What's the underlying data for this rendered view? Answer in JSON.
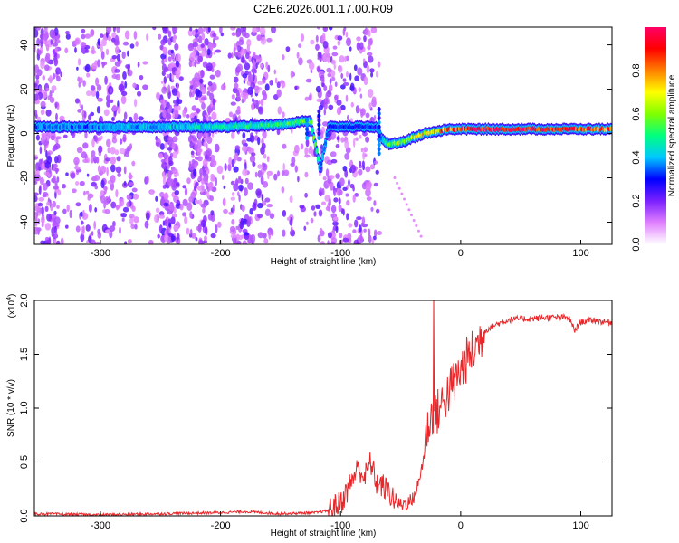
{
  "title": "C2E6.2026.001.17.00.R09",
  "chart_data": [
    {
      "type": "heatmap",
      "xlabel": "Height of straight line (km)",
      "ylabel": "Frequency (Hz)",
      "xlim": [
        -355,
        126
      ],
      "ylim": [
        -50,
        48
      ],
      "xticks": [
        -300,
        -200,
        -100,
        0,
        100
      ],
      "yticks": [
        -40,
        -20,
        0,
        20,
        40
      ],
      "colorbar": {
        "label": "Normalized spectral amplitude",
        "range": [
          0,
          1
        ],
        "ticks": [
          0.0,
          0.2,
          0.4,
          0.6,
          0.8
        ],
        "colors": [
          "#ffffff",
          "#e080ff",
          "#7a20ff",
          "#0000ff",
          "#00c8ff",
          "#00ff80",
          "#80ff00",
          "#ffff00",
          "#ff8000",
          "#ff0000",
          "#ff0066"
        ]
      },
      "ridge": {
        "x": [
          -355,
          -300,
          -250,
          -200,
          -150,
          -125,
          -117,
          -110,
          -70,
          -66,
          -60,
          -50,
          -40,
          -30,
          -20,
          -10,
          0,
          20,
          50,
          80,
          100,
          126
        ],
        "freq": [
          3,
          3,
          3,
          3,
          4,
          6,
          -16,
          3,
          3,
          -2,
          -5,
          -4,
          -2,
          0,
          1,
          2,
          2,
          2,
          2,
          2,
          2,
          2
        ],
        "amplitude": [
          0.35,
          0.35,
          0.4,
          0.45,
          0.5,
          0.6,
          0.4,
          0.3,
          0.3,
          0.35,
          0.55,
          0.6,
          0.65,
          0.7,
          0.75,
          0.85,
          0.9,
          0.95,
          0.95,
          0.9,
          0.85,
          0.8
        ]
      },
      "noise_band_x": [
        -355,
        -65
      ]
    },
    {
      "type": "line",
      "xlabel": "Height of straight line (km)",
      "ylabel": "SNR (10 * v/v)",
      "scale_label": "(x10",
      "scale_exp": "4",
      "scale_close": ")",
      "xlim": [
        -355,
        126
      ],
      "ylim": [
        0,
        2.0
      ],
      "xticks": [
        -300,
        -200,
        -100,
        0,
        100
      ],
      "yticks": [
        0.0,
        0.5,
        1.0,
        1.5,
        2.0
      ],
      "series": [
        {
          "color": "#e8272a",
          "x": [
            -355,
            -300,
            -250,
            -200,
            -180,
            -150,
            -120,
            -110,
            -100,
            -95,
            -90,
            -85,
            -80,
            -75,
            -70,
            -65,
            -60,
            -55,
            -50,
            -45,
            -40,
            -35,
            -30,
            -28,
            -25,
            -22,
            -20,
            -15,
            -10,
            -5,
            0,
            5,
            10,
            15,
            20,
            30,
            40,
            50,
            60,
            70,
            80,
            90,
            95,
            100,
            110,
            120,
            126
          ],
          "y": [
            0.02,
            0.01,
            0.02,
            0.03,
            0.04,
            0.02,
            0.03,
            0.05,
            0.12,
            0.22,
            0.35,
            0.45,
            0.35,
            0.5,
            0.3,
            0.28,
            0.22,
            0.15,
            0.1,
            0.12,
            0.15,
            0.3,
            0.6,
            0.8,
            0.9,
            1.0,
            0.95,
            1.05,
            1.15,
            1.25,
            1.35,
            1.45,
            1.52,
            1.62,
            1.72,
            1.78,
            1.82,
            1.83,
            1.83,
            1.84,
            1.84,
            1.84,
            1.72,
            1.8,
            1.82,
            1.8,
            1.8
          ]
        }
      ]
    }
  ]
}
